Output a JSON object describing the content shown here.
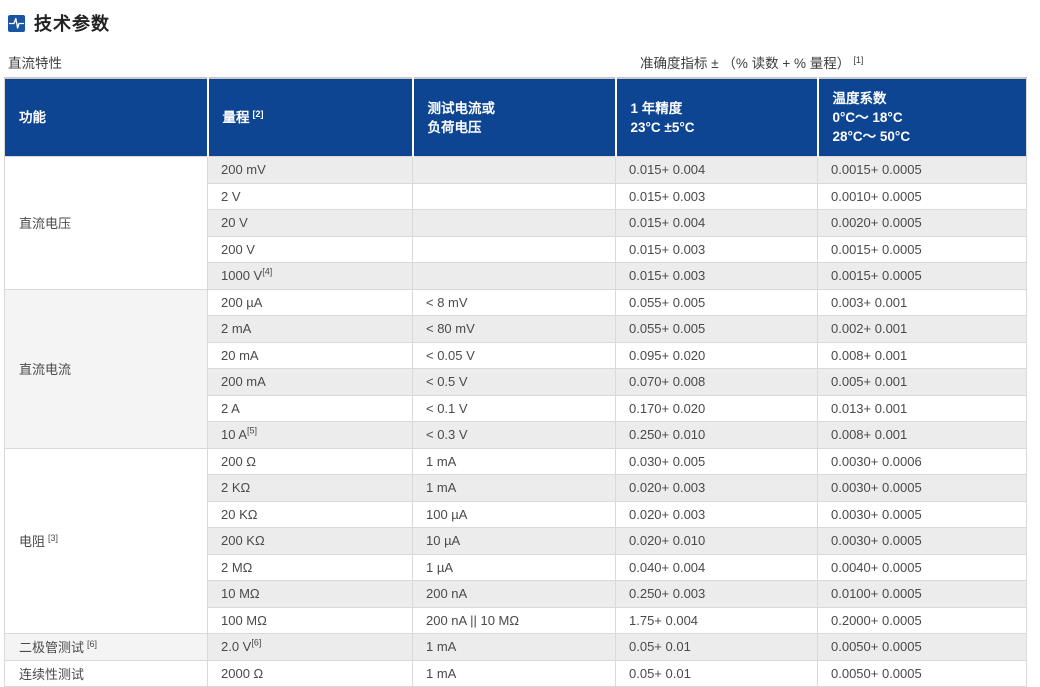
{
  "page": {
    "title": "技术参数",
    "section_label": "直流特性",
    "accuracy_note": "准确度指标 ± （% 读数 + % 量程）",
    "accuracy_note_sup": "[1]"
  },
  "colors": {
    "header_bg": "#0d4593",
    "icon_blue": "#1a55a3",
    "stripe_gray": "#ececec",
    "function_stripe_gray": "#f4f4f4",
    "border_gray": "#d9d9d9"
  },
  "table": {
    "headers": [
      {
        "label": "功能"
      },
      {
        "label": "量程",
        "sup": "[2]"
      },
      {
        "lines": [
          "测试电流或",
          "负荷电压"
        ]
      },
      {
        "lines": [
          "1 年精度",
          "23°C ±5°C"
        ]
      },
      {
        "lines": [
          "温度系数",
          "0°C～ 18°C",
          "28°C～ 50°C"
        ]
      }
    ],
    "groups": [
      {
        "function": "直流电压",
        "function_sup": "",
        "rows": [
          {
            "range": "200 mV",
            "range_sup": "",
            "test": "",
            "accuracy": "0.015+ 0.004",
            "tempco": "0.0015+ 0.0005"
          },
          {
            "range": "2 V",
            "range_sup": "",
            "test": "",
            "accuracy": "0.015+ 0.003",
            "tempco": "0.0010+ 0.0005"
          },
          {
            "range": "20 V",
            "range_sup": "",
            "test": "",
            "accuracy": "0.015+ 0.004",
            "tempco": "0.0020+ 0.0005"
          },
          {
            "range": "200 V",
            "range_sup": "",
            "test": "",
            "accuracy": "0.015+ 0.003",
            "tempco": "0.0015+ 0.0005"
          },
          {
            "range": "1000 V",
            "range_sup": "[4]",
            "test": "",
            "accuracy": "0.015+ 0.003",
            "tempco": "0.0015+ 0.0005"
          }
        ]
      },
      {
        "function": "直流电流",
        "function_sup": "",
        "rows": [
          {
            "range": "200 µA",
            "range_sup": "",
            "test": "< 8 mV",
            "accuracy": "0.055+ 0.005",
            "tempco": "0.003+ 0.001"
          },
          {
            "range": "2 mA",
            "range_sup": "",
            "test": "< 80 mV",
            "accuracy": "0.055+ 0.005",
            "tempco": "0.002+ 0.001"
          },
          {
            "range": "20 mA",
            "range_sup": "",
            "test": "< 0.05 V",
            "accuracy": "0.095+ 0.020",
            "tempco": "0.008+ 0.001"
          },
          {
            "range": "200 mA",
            "range_sup": "",
            "test": "< 0.5 V",
            "accuracy": "0.070+ 0.008",
            "tempco": "0.005+ 0.001"
          },
          {
            "range": "2 A",
            "range_sup": "",
            "test": "< 0.1 V",
            "accuracy": "0.170+ 0.020",
            "tempco": "0.013+ 0.001"
          },
          {
            "range": "10 A",
            "range_sup": "[5]",
            "test": "< 0.3 V",
            "accuracy": "0.250+ 0.010",
            "tempco": "0.008+ 0.001"
          }
        ]
      },
      {
        "function": "电阻",
        "function_sup": "[3]",
        "rows": [
          {
            "range": "200 Ω",
            "range_sup": "",
            "test": "1 mA",
            "accuracy": "0.030+ 0.005",
            "tempco": "0.0030+ 0.0006"
          },
          {
            "range": "2 KΩ",
            "range_sup": "",
            "test": "1 mA",
            "accuracy": "0.020+ 0.003",
            "tempco": "0.0030+ 0.0005"
          },
          {
            "range": "20 KΩ",
            "range_sup": "",
            "test": "100 µA",
            "accuracy": "0.020+ 0.003",
            "tempco": "0.0030+ 0.0005"
          },
          {
            "range": "200 KΩ",
            "range_sup": "",
            "test": "10 µA",
            "accuracy": "0.020+ 0.010",
            "tempco": "0.0030+ 0.0005"
          },
          {
            "range": "2 MΩ",
            "range_sup": "",
            "test": "1 µA",
            "accuracy": "0.040+ 0.004",
            "tempco": "0.0040+ 0.0005"
          },
          {
            "range": "10 MΩ",
            "range_sup": "",
            "test": "200 nA",
            "accuracy": "0.250+ 0.003",
            "tempco": "0.0100+ 0.0005"
          },
          {
            "range": "100 MΩ",
            "range_sup": "",
            "test": "200 nA || 10 MΩ",
            "accuracy": "1.75+ 0.004",
            "tempco": "0.2000+ 0.0005"
          }
        ]
      },
      {
        "function": "二极管测试",
        "function_sup": "[6]",
        "rows": [
          {
            "range": "2.0 V",
            "range_sup": "[6]",
            "test": "1 mA",
            "accuracy": "0.05+ 0.01",
            "tempco": "0.0050+ 0.0005"
          }
        ]
      },
      {
        "function": "连续性测试",
        "function_sup": "",
        "rows": [
          {
            "range": "2000 Ω",
            "range_sup": "",
            "test": "1 mA",
            "accuracy": "0.05+ 0.01",
            "tempco": "0.0050+ 0.0005"
          }
        ]
      }
    ]
  }
}
